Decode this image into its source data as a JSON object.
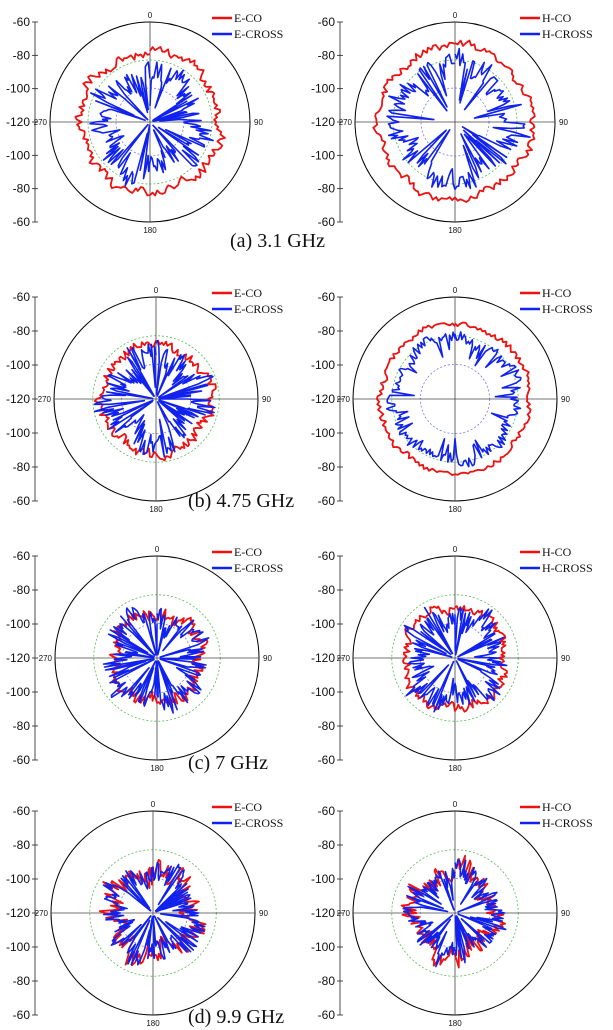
{
  "figure": {
    "scale_ticks_left": [
      "-60",
      "-80",
      "-100",
      "-120",
      "-100",
      "-80",
      "-60"
    ],
    "angle_labels": [
      "0",
      "90",
      "180",
      "270"
    ],
    "colors": {
      "co": "#ee1111",
      "cross": "#1122ee",
      "frame": "#000000",
      "grid_inner": "#7777ee",
      "grid_outer": "#55bb55"
    }
  },
  "panels": [
    {
      "caption": "(a) 3.1 GHz",
      "left": {
        "legend": [
          "E-CO",
          "E-CROSS"
        ]
      },
      "right": {
        "legend": [
          "H-CO",
          "H-CROSS"
        ]
      }
    },
    {
      "caption": "(b) 4.75 GHz",
      "left": {
        "legend": [
          "E-CO",
          "E-CROSS"
        ]
      },
      "right": {
        "legend": [
          "H-CO",
          "H-CROSS"
        ]
      }
    },
    {
      "caption": "(c) 7 GHz",
      "left": {
        "legend": [
          "E-CO",
          "E-CROSS"
        ]
      },
      "right": {
        "legend": [
          "H-CO",
          "H-CROSS"
        ]
      }
    },
    {
      "caption": "(d) 9.9 GHz",
      "left": {
        "legend": [
          "E-CO",
          "E-CROSS"
        ]
      },
      "right": {
        "legend": [
          "H-CO",
          "H-CROSS"
        ]
      }
    }
  ],
  "chart_data": [
    {
      "type": "polar",
      "panel": "(a) 3.1 GHz",
      "plane": "E",
      "r_axis_ticks": [
        -60,
        -80,
        -100,
        -120
      ],
      "angle_ticks_deg": [
        0,
        90,
        180,
        270
      ],
      "rlim": [
        -120,
        -60
      ],
      "series": [
        {
          "name": "E-CO",
          "mean_level_db": -78,
          "ripple_db": 5
        },
        {
          "name": "E-CROSS",
          "mean_level_db": -92,
          "ripple_db": 14
        }
      ]
    },
    {
      "type": "polar",
      "panel": "(a) 3.1 GHz",
      "plane": "H",
      "r_axis_ticks": [
        -60,
        -80,
        -100,
        -120
      ],
      "angle_ticks_deg": [
        0,
        90,
        180,
        270
      ],
      "rlim": [
        -120,
        -60
      ],
      "series": [
        {
          "name": "H-CO",
          "mean_level_db": -74,
          "ripple_db": 4
        },
        {
          "name": "H-CROSS",
          "mean_level_db": -86,
          "ripple_db": 13
        }
      ]
    },
    {
      "type": "polar",
      "panel": "(b) 4.75 GHz",
      "plane": "E",
      "r_axis_ticks": [
        -60,
        -80,
        -100,
        -120
      ],
      "angle_ticks_deg": [
        0,
        90,
        180,
        270
      ],
      "rlim": [
        -120,
        -60
      ],
      "series": [
        {
          "name": "E-CO",
          "mean_level_db": -88,
          "ripple_db": 5
        },
        {
          "name": "E-CROSS",
          "mean_level_db": -96,
          "ripple_db": 16
        }
      ]
    },
    {
      "type": "polar",
      "panel": "(b) 4.75 GHz",
      "plane": "H",
      "r_axis_ticks": [
        -60,
        -80,
        -100,
        -120
      ],
      "angle_ticks_deg": [
        0,
        90,
        180,
        270
      ],
      "rlim": [
        -120,
        -60
      ],
      "series": [
        {
          "name": "H-CO",
          "mean_level_db": -76,
          "ripple_db": 3
        },
        {
          "name": "H-CROSS",
          "mean_level_db": -84,
          "ripple_db": 6
        }
      ]
    },
    {
      "type": "polar",
      "panel": "(c) 7 GHz",
      "plane": "E",
      "r_axis_ticks": [
        -60,
        -80,
        -100,
        -120
      ],
      "angle_ticks_deg": [
        0,
        90,
        180,
        270
      ],
      "rlim": [
        -120,
        -60
      ],
      "series": [
        {
          "name": "E-CO",
          "mean_level_db": -94,
          "ripple_db": 7
        },
        {
          "name": "E-CROSS",
          "mean_level_db": -96,
          "ripple_db": 14
        }
      ]
    },
    {
      "type": "polar",
      "panel": "(c) 7 GHz",
      "plane": "H",
      "r_axis_ticks": [
        -60,
        -80,
        -100,
        -120
      ],
      "angle_ticks_deg": [
        0,
        90,
        180,
        270
      ],
      "rlim": [
        -120,
        -60
      ],
      "series": [
        {
          "name": "H-CO",
          "mean_level_db": -90,
          "ripple_db": 5
        },
        {
          "name": "H-CROSS",
          "mean_level_db": -96,
          "ripple_db": 14
        }
      ]
    },
    {
      "type": "polar",
      "panel": "(d) 9.9 GHz",
      "plane": "E",
      "r_axis_ticks": [
        -60,
        -80,
        -100,
        -120
      ],
      "angle_ticks_deg": [
        0,
        90,
        180,
        270
      ],
      "rlim": [
        -120,
        -60
      ],
      "series": [
        {
          "name": "E-CO",
          "mean_level_db": -96,
          "ripple_db": 12
        },
        {
          "name": "E-CROSS",
          "mean_level_db": -97,
          "ripple_db": 13
        }
      ]
    },
    {
      "type": "polar",
      "panel": "(d) 9.9 GHz",
      "plane": "H",
      "r_axis_ticks": [
        -60,
        -80,
        -100,
        -120
      ],
      "angle_ticks_deg": [
        0,
        90,
        180,
        270
      ],
      "rlim": [
        -120,
        -60
      ],
      "series": [
        {
          "name": "H-CO",
          "mean_level_db": -96,
          "ripple_db": 11
        },
        {
          "name": "H-CROSS",
          "mean_level_db": -97,
          "ripple_db": 12
        }
      ]
    }
  ]
}
